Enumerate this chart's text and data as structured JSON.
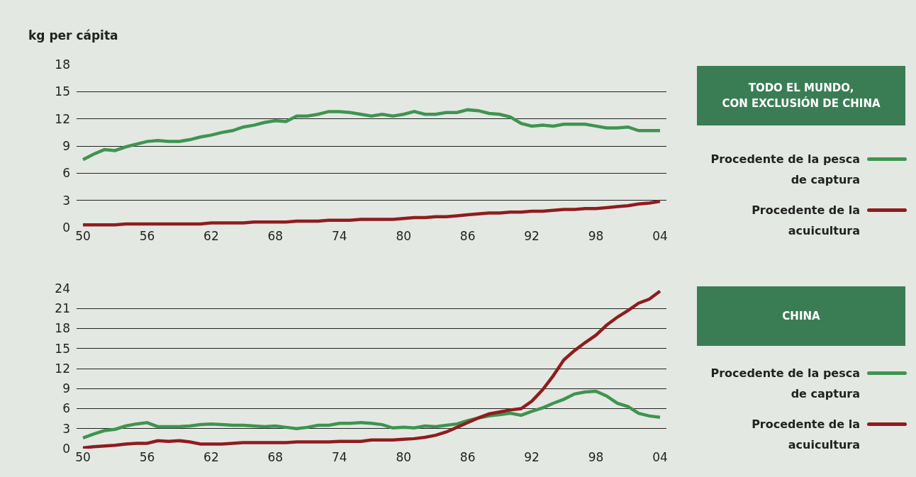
{
  "chart_data": [
    {
      "type": "line",
      "legend_title": "TODO EL MUNDO, CON EXCLUSIÓN DE CHINA",
      "ylabel": "kg per cápita",
      "x": [
        1950,
        1951,
        1952,
        1953,
        1954,
        1955,
        1956,
        1957,
        1958,
        1959,
        1960,
        1961,
        1962,
        1963,
        1964,
        1965,
        1966,
        1967,
        1968,
        1969,
        1970,
        1971,
        1972,
        1973,
        1974,
        1975,
        1976,
        1977,
        1978,
        1979,
        1980,
        1981,
        1982,
        1983,
        1984,
        1985,
        1986,
        1987,
        1988,
        1989,
        1990,
        1991,
        1992,
        1993,
        1994,
        1995,
        1996,
        1997,
        1998,
        1999,
        2000,
        2001,
        2002,
        2003,
        2004
      ],
      "series": [
        {
          "name": "Procedente de la pesca de captura",
          "color": "#3f9450",
          "values": [
            7.5,
            8.1,
            8.6,
            8.5,
            8.9,
            9.2,
            9.5,
            9.6,
            9.5,
            9.5,
            9.7,
            10.0,
            10.2,
            10.5,
            10.7,
            11.1,
            11.3,
            11.6,
            11.8,
            11.7,
            12.3,
            12.3,
            12.5,
            12.8,
            12.8,
            12.7,
            12.5,
            12.3,
            12.5,
            12.3,
            12.5,
            12.8,
            12.5,
            12.5,
            12.7,
            12.7,
            13.0,
            12.9,
            12.6,
            12.5,
            12.2,
            11.5,
            11.2,
            11.3,
            11.2,
            11.4,
            11.4,
            11.4,
            11.2,
            11.0,
            11.0,
            11.1,
            10.7,
            10.7,
            10.7
          ]
        },
        {
          "name": "Procedente de la acuicultura",
          "color": "#8f1c1e",
          "values": [
            0.3,
            0.3,
            0.3,
            0.3,
            0.4,
            0.4,
            0.4,
            0.4,
            0.4,
            0.4,
            0.4,
            0.4,
            0.5,
            0.5,
            0.5,
            0.5,
            0.6,
            0.6,
            0.6,
            0.6,
            0.7,
            0.7,
            0.7,
            0.8,
            0.8,
            0.8,
            0.9,
            0.9,
            0.9,
            0.9,
            1.0,
            1.1,
            1.1,
            1.2,
            1.2,
            1.3,
            1.4,
            1.5,
            1.6,
            1.6,
            1.7,
            1.7,
            1.8,
            1.8,
            1.9,
            2.0,
            2.0,
            2.1,
            2.1,
            2.2,
            2.3,
            2.4,
            2.6,
            2.7,
            2.9
          ]
        }
      ],
      "xlim": [
        1949.4,
        2004.6
      ],
      "xticks": [
        {
          "value": 1950,
          "label": "50"
        },
        {
          "value": 1956,
          "label": "56"
        },
        {
          "value": 1962,
          "label": "62"
        },
        {
          "value": 1968,
          "label": "68"
        },
        {
          "value": 1974,
          "label": "74"
        },
        {
          "value": 1980,
          "label": "80"
        },
        {
          "value": 1986,
          "label": "86"
        },
        {
          "value": 1992,
          "label": "92"
        },
        {
          "value": 1998,
          "label": "98"
        },
        {
          "value": 2004,
          "label": "04"
        }
      ],
      "ylim": [
        0,
        18
      ],
      "yticks": [
        0,
        3,
        6,
        9,
        12,
        15,
        18
      ],
      "grid": "y",
      "legend": "right",
      "marker": "none",
      "line_style": "solid"
    },
    {
      "type": "line",
      "legend_title": "CHINA",
      "x": [
        1950,
        1951,
        1952,
        1953,
        1954,
        1955,
        1956,
        1957,
        1958,
        1959,
        1960,
        1961,
        1962,
        1963,
        1964,
        1965,
        1966,
        1967,
        1968,
        1969,
        1970,
        1971,
        1972,
        1973,
        1974,
        1975,
        1976,
        1977,
        1978,
        1979,
        1980,
        1981,
        1982,
        1983,
        1984,
        1985,
        1986,
        1987,
        1988,
        1989,
        1990,
        1991,
        1992,
        1993,
        1994,
        1995,
        1996,
        1997,
        1998,
        1999,
        2000,
        2001,
        2002,
        2003,
        2004
      ],
      "series": [
        {
          "name": "Procedente de la pesca de captura",
          "color": "#3f9450",
          "values": [
            1.6,
            2.2,
            2.7,
            2.9,
            3.4,
            3.7,
            3.9,
            3.3,
            3.3,
            3.3,
            3.4,
            3.6,
            3.7,
            3.6,
            3.5,
            3.5,
            3.4,
            3.3,
            3.4,
            3.2,
            3.0,
            3.2,
            3.5,
            3.5,
            3.8,
            3.8,
            3.9,
            3.8,
            3.6,
            3.1,
            3.2,
            3.1,
            3.4,
            3.3,
            3.5,
            3.7,
            4.2,
            4.6,
            4.9,
            5.1,
            5.3,
            5.0,
            5.6,
            6.1,
            6.8,
            7.4,
            8.2,
            8.5,
            8.6,
            7.9,
            6.8,
            6.3,
            5.3,
            4.9,
            4.7
          ]
        },
        {
          "name": "Procedente de la acuicultura",
          "color": "#8f1c1e",
          "values": [
            0.1,
            0.3,
            0.4,
            0.5,
            0.7,
            0.8,
            0.8,
            1.2,
            1.1,
            1.2,
            1.0,
            0.7,
            0.7,
            0.7,
            0.8,
            0.9,
            0.9,
            0.9,
            0.9,
            0.9,
            1.0,
            1.0,
            1.0,
            1.0,
            1.1,
            1.1,
            1.1,
            1.3,
            1.3,
            1.3,
            1.4,
            1.5,
            1.7,
            2.0,
            2.5,
            3.2,
            3.9,
            4.6,
            5.2,
            5.5,
            5.8,
            6.0,
            7.1,
            8.8,
            10.9,
            13.3,
            14.7,
            15.9,
            17.0,
            18.5,
            19.7,
            20.7,
            21.8,
            22.4,
            23.6
          ]
        }
      ],
      "xlim": [
        1949.4,
        2004.6
      ],
      "xticks": [
        {
          "value": 1950,
          "label": "50"
        },
        {
          "value": 1956,
          "label": "56"
        },
        {
          "value": 1962,
          "label": "62"
        },
        {
          "value": 1968,
          "label": "68"
        },
        {
          "value": 1974,
          "label": "74"
        },
        {
          "value": 1980,
          "label": "80"
        },
        {
          "value": 1986,
          "label": "86"
        },
        {
          "value": 1992,
          "label": "92"
        },
        {
          "value": 1998,
          "label": "98"
        },
        {
          "value": 2004,
          "label": "04"
        }
      ],
      "ylim": [
        0,
        24
      ],
      "yticks": [
        0,
        3,
        6,
        9,
        12,
        15,
        18,
        21,
        24
      ],
      "grid": "y",
      "legend": "right",
      "marker": "none",
      "line_style": "solid"
    }
  ]
}
